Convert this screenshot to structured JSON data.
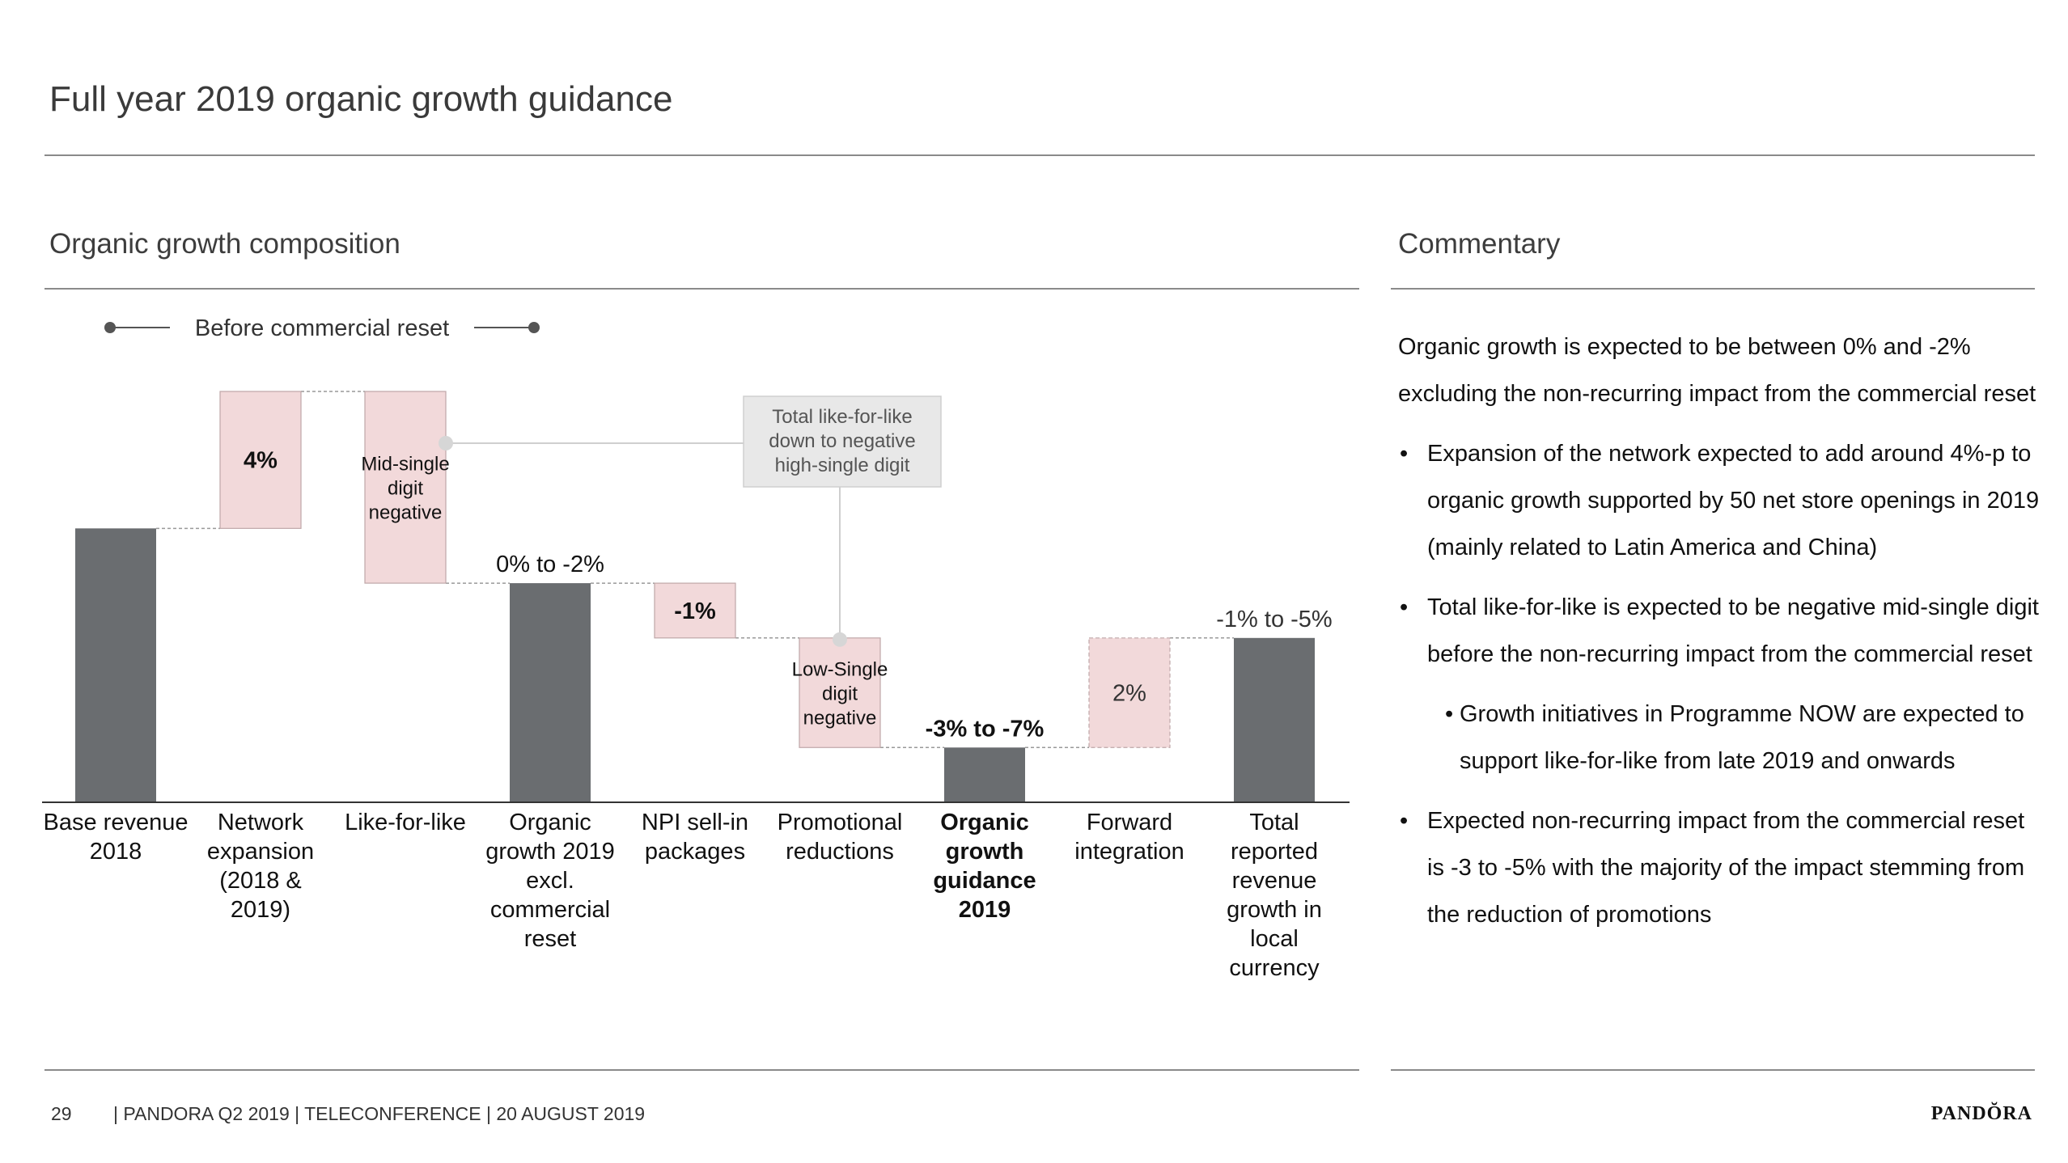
{
  "page": {
    "title": "Full year 2019 organic growth guidance",
    "left_section": "Organic growth composition",
    "right_section": "Commentary"
  },
  "chart_data": {
    "type": "bar",
    "subtype": "waterfall",
    "bracket_label": "Before commercial reset",
    "callout": "Total like-for-like down to negative high-single digit",
    "categories": [
      "Base revenue 2018",
      "Network expansion (2018 & 2019)",
      "Like-for-like",
      "Organic growth 2019 excl. commercial reset",
      "NPI sell-in packages",
      "Promotional reductions",
      "Organic growth guidance 2019",
      "Forward integration",
      "Total reported revenue growth in local currency"
    ],
    "bold_categories": [
      "Organic growth guidance 2019"
    ],
    "labels": [
      "",
      "4%",
      "Mid-single digit negative",
      "0% to -2%",
      "-1%",
      "Low-Single digit negative",
      "-3% to -7%",
      "2%",
      "-1% to -5%"
    ],
    "kinds": [
      "total",
      "increase",
      "decrease",
      "total",
      "decrease",
      "decrease",
      "total",
      "increase",
      "total"
    ],
    "tops": [
      100,
      150,
      150,
      80,
      80,
      60,
      20,
      60,
      60
    ],
    "bottoms": [
      0,
      100,
      80,
      0,
      60,
      20,
      0,
      20,
      0
    ],
    "ylim": [
      0,
      150
    ],
    "grid": false,
    "legend": "none",
    "colors": {
      "total": "#6a6d70",
      "change": "#f2d9da",
      "change_border": "#bfa7a8",
      "connector": "#999999",
      "callout_bg": "#e8e8e8"
    }
  },
  "commentary": {
    "intro": "Organic growth is expected to be between 0% and -2% excluding the non-recurring impact from the commercial reset",
    "bullets": [
      {
        "level": 1,
        "text": "Expansion of the network expected to add around 4%-p to organic growth supported by 50 net store openings in 2019 (mainly related to Latin America and China)"
      },
      {
        "level": 1,
        "text": "Total like-for-like is expected to be negative mid-single digit before the non-recurring impact from the commercial reset"
      },
      {
        "level": 2,
        "text": "Growth initiatives in Programme NOW are expected to support like-for-like from late 2019 and onwards"
      },
      {
        "level": 1,
        "text": "Expected non-recurring impact from the commercial reset is -3 to -5% with the majority of the impact stemming from the reduction of promotions"
      }
    ],
    "bullet_symbol": "•"
  },
  "footer": {
    "page_number": "29",
    "text": "| PANDORA Q2 2019 | TELECONFERENCE | 20 AUGUST 2019",
    "logo": "PANDŎRA"
  }
}
